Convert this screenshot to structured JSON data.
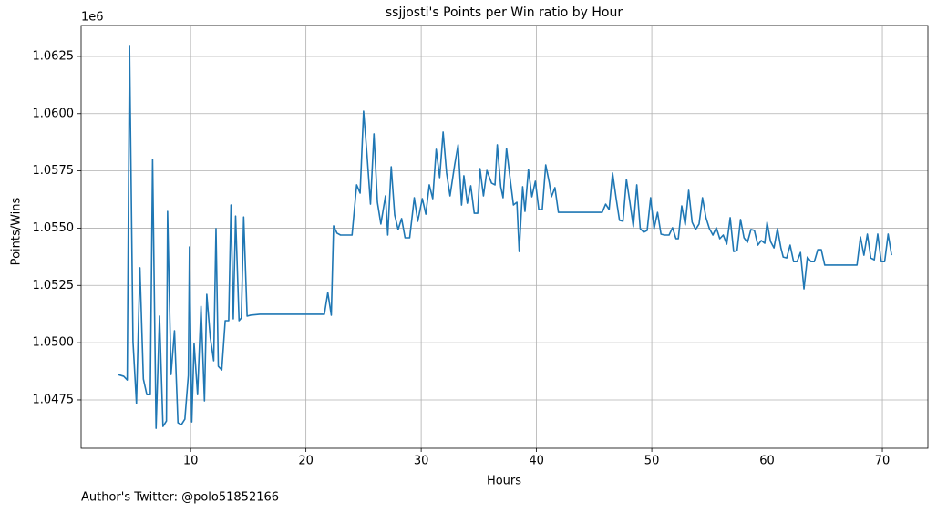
{
  "chart_data": {
    "type": "line",
    "title": "ssjjosti's Points per Win ratio by Hour",
    "xlabel": "Hours",
    "ylabel": "Points/Wins",
    "y_offset_label": "1e6",
    "footnote": "Author's Twitter: @polo51852166",
    "color": "#1f77b4",
    "grid": true,
    "xlim": [
      0.5,
      73.95
    ],
    "xticks": [
      10,
      20,
      30,
      40,
      50,
      60,
      70
    ],
    "ylim": [
      1.04539,
      1.06385
    ],
    "yticks": [
      1.0475,
      {
        "value": 1.05,
        "label": "1.0500"
      },
      1.0525,
      {
        "value": 1.055,
        "label": "1.0550"
      },
      1.0575,
      {
        "value": 1.06,
        "label": "1.0600"
      },
      1.0625
    ],
    "x": [
      3.7,
      4.2,
      4.5,
      4.7,
      5.0,
      5.3,
      5.6,
      5.9,
      6.2,
      6.5,
      6.7,
      7.0,
      7.3,
      7.6,
      7.9,
      8.0,
      8.3,
      8.6,
      8.9,
      9.2,
      9.5,
      9.8,
      9.9,
      10.1,
      10.3,
      10.6,
      10.9,
      11.2,
      11.4,
      11.7,
      12.0,
      12.2,
      12.4,
      12.7,
      13.0,
      13.3,
      13.5,
      13.7,
      13.9,
      14.2,
      14.4,
      14.6,
      14.9,
      15.2,
      16.0,
      21.6,
      21.9,
      22.2,
      22.4,
      22.7,
      23.0,
      24.0,
      24.4,
      24.7,
      25.0,
      25.3,
      25.6,
      25.9,
      26.2,
      26.5,
      26.9,
      27.1,
      27.4,
      27.7,
      28.0,
      28.3,
      28.6,
      29.0,
      29.4,
      29.7,
      30.1,
      30.4,
      30.7,
      31.0,
      31.3,
      31.6,
      31.9,
      32.2,
      32.5,
      32.9,
      33.2,
      33.5,
      33.7,
      34.0,
      34.3,
      34.6,
      34.9,
      35.1,
      35.4,
      35.7,
      36.1,
      36.4,
      36.6,
      36.9,
      37.1,
      37.4,
      37.7,
      38.0,
      38.3,
      38.5,
      38.8,
      39.0,
      39.3,
      39.6,
      39.9,
      40.2,
      40.5,
      40.8,
      41.1,
      41.3,
      41.6,
      41.9,
      45.7,
      46.0,
      46.3,
      46.6,
      46.9,
      47.2,
      47.5,
      47.8,
      48.1,
      48.4,
      48.7,
      49.0,
      49.3,
      49.6,
      49.9,
      50.2,
      50.5,
      50.8,
      51.1,
      51.5,
      51.8,
      52.1,
      52.3,
      52.6,
      52.9,
      53.2,
      53.5,
      53.8,
      54.1,
      54.4,
      54.7,
      55.0,
      55.3,
      55.6,
      55.9,
      56.2,
      56.5,
      56.8,
      57.1,
      57.4,
      57.7,
      58.0,
      58.3,
      58.6,
      58.9,
      59.2,
      59.5,
      59.8,
      60.0,
      60.3,
      60.6,
      60.9,
      61.2,
      61.4,
      61.7,
      62.0,
      62.3,
      62.6,
      62.9,
      63.2,
      63.5,
      63.8,
      64.1,
      64.4,
      64.7,
      65.0,
      67.8,
      68.1,
      68.4,
      68.7,
      69.0,
      69.3,
      69.6,
      69.9,
      70.2,
      70.5,
      70.8
    ],
    "values": [
      1.04861,
      1.04853,
      1.04837,
      1.06298,
      1.05004,
      1.04734,
      1.05327,
      1.04841,
      1.04773,
      1.04773,
      1.058,
      1.04626,
      1.05116,
      1.04634,
      1.04658,
      1.05573,
      1.04861,
      1.05052,
      1.0465,
      1.04642,
      1.04666,
      1.04857,
      1.05418,
      1.04654,
      1.04996,
      1.04773,
      1.05159,
      1.04746,
      1.05211,
      1.05024,
      1.04921,
      1.05498,
      1.04897,
      1.04881,
      1.05096,
      1.05096,
      1.05601,
      1.05104,
      1.05553,
      1.05096,
      1.05108,
      1.05549,
      1.05116,
      1.0512,
      1.05124,
      1.05124,
      1.05219,
      1.0512,
      1.0551,
      1.05478,
      1.0547,
      1.0547,
      1.05689,
      1.05653,
      1.06011,
      1.0582,
      1.05605,
      1.05912,
      1.05613,
      1.05518,
      1.05641,
      1.0547,
      1.05768,
      1.05557,
      1.05494,
      1.05542,
      1.05458,
      1.05458,
      1.05633,
      1.0553,
      1.05629,
      1.05561,
      1.05689,
      1.05629,
      1.05844,
      1.05721,
      1.0592,
      1.05741,
      1.05641,
      1.05776,
      1.05864,
      1.05601,
      1.05729,
      1.05609,
      1.05685,
      1.05565,
      1.05565,
      1.0576,
      1.05641,
      1.05752,
      1.05697,
      1.05689,
      1.05864,
      1.05681,
      1.05633,
      1.05848,
      1.05721,
      1.05601,
      1.05613,
      1.05398,
      1.05681,
      1.05573,
      1.05756,
      1.05637,
      1.05705,
      1.05581,
      1.05581,
      1.05776,
      1.05701,
      1.05637,
      1.05677,
      1.05569,
      1.05569,
      1.05605,
      1.05581,
      1.05741,
      1.05633,
      1.05534,
      1.0553,
      1.05713,
      1.05613,
      1.05506,
      1.05689,
      1.05498,
      1.05482,
      1.0549,
      1.05633,
      1.05498,
      1.05569,
      1.05474,
      1.0547,
      1.0547,
      1.05502,
      1.05454,
      1.05454,
      1.05597,
      1.05514,
      1.05665,
      1.05526,
      1.05494,
      1.05518,
      1.05633,
      1.05546,
      1.05498,
      1.0547,
      1.05502,
      1.05454,
      1.0547,
      1.0543,
      1.05546,
      1.05398,
      1.05402,
      1.05538,
      1.05458,
      1.05438,
      1.05494,
      1.0549,
      1.05426,
      1.05446,
      1.05434,
      1.05526,
      1.05442,
      1.05414,
      1.05498,
      1.05414,
      1.05374,
      1.0537,
      1.05426,
      1.05354,
      1.05354,
      1.05394,
      1.05235,
      1.05374,
      1.05354,
      1.05354,
      1.05406,
      1.05406,
      1.05339,
      1.05339,
      1.05462,
      1.05382,
      1.05474,
      1.0537,
      1.05362,
      1.05474,
      1.05354,
      1.05354,
      1.05474,
      1.05382
    ]
  }
}
